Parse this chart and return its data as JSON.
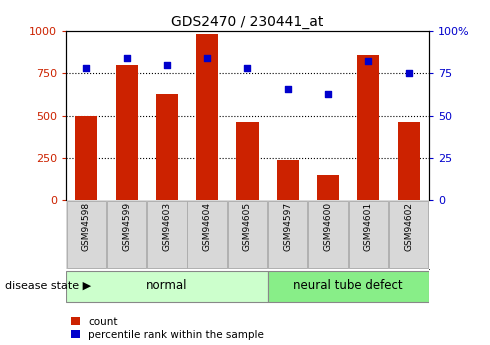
{
  "title": "GDS2470 / 230441_at",
  "categories": [
    "GSM94598",
    "GSM94599",
    "GSM94603",
    "GSM94604",
    "GSM94605",
    "GSM94597",
    "GSM94600",
    "GSM94601",
    "GSM94602"
  ],
  "counts": [
    500,
    800,
    630,
    980,
    460,
    240,
    150,
    860,
    460
  ],
  "percentiles": [
    78,
    84,
    80,
    84,
    78,
    66,
    63,
    82,
    75
  ],
  "bar_color": "#cc2200",
  "dot_color": "#0000cc",
  "left_ylim": [
    0,
    1000
  ],
  "right_ylim": [
    0,
    100
  ],
  "left_yticks": [
    0,
    250,
    500,
    750,
    1000
  ],
  "right_yticks": [
    0,
    25,
    50,
    75,
    100
  ],
  "right_yticklabels": [
    "0",
    "25",
    "50",
    "75",
    "100%"
  ],
  "left_yticklabels": [
    "0",
    "250",
    "500",
    "750",
    "1000"
  ],
  "normal_indices": [
    0,
    1,
    2,
    3,
    4
  ],
  "defect_indices": [
    5,
    6,
    7,
    8
  ],
  "normal_label": "normal",
  "defect_label": "neural tube defect",
  "disease_state_label": "disease state",
  "normal_color": "#ccffcc",
  "defect_color": "#88ee88",
  "legend_count_label": "count",
  "legend_percentile_label": "percentile rank within the sample",
  "tick_label_color_left": "#cc2200",
  "tick_label_color_right": "#0000cc",
  "background_color": "#ffffff",
  "xlabel_box_color": "#d8d8d8",
  "xlabel_box_edge": "#aaaaaa"
}
